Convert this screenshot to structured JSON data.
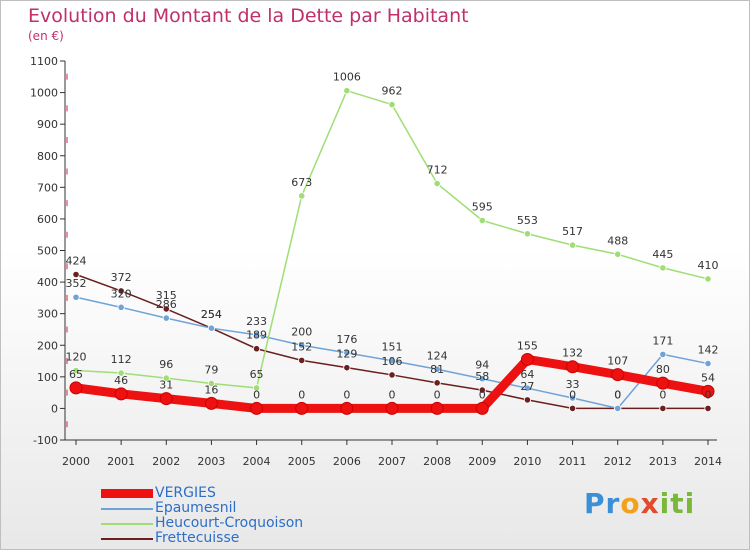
{
  "title": "Evolution du Montant de la Dette par Habitant",
  "subtitle": "(en €)",
  "logo": "Proxiti",
  "colors": {
    "title": "#c0306a",
    "legend_text": "#2d6ec9",
    "axis": "#333333",
    "tick_marks": "#cc2244"
  },
  "chart_data": {
    "type": "line",
    "title": "Evolution du Montant de la Dette par Habitant",
    "ylabel": "(en €)",
    "x": [
      "2000",
      "2001",
      "2002",
      "2003",
      "2004",
      "2005",
      "2006",
      "2007",
      "2008",
      "2009",
      "2010",
      "2011",
      "2012",
      "2013",
      "2014"
    ],
    "ylim": [
      -100,
      1100
    ],
    "yticks": [
      -100,
      0,
      100,
      200,
      300,
      400,
      500,
      600,
      700,
      800,
      900,
      1000,
      1100
    ],
    "grid": false,
    "legend_position": "bottom-left",
    "series": [
      {
        "name": "Frettecuisse",
        "color": "#6b1f1f",
        "values": [
          424,
          372,
          315,
          254,
          189,
          152,
          129,
          106,
          81,
          58,
          27,
          0,
          0,
          0,
          0
        ],
        "labels": [
          "424",
          "372",
          "315",
          "254",
          "189",
          "152",
          "129",
          "106",
          "81",
          "58",
          "27",
          "0",
          "0",
          "0",
          "0"
        ]
      },
      {
        "name": "Epaumesnil",
        "color": "#6fa3d6",
        "values": [
          352,
          320,
          286,
          254,
          233,
          200,
          176,
          151,
          124,
          94,
          64,
          33,
          0,
          171,
          142
        ],
        "labels": [
          "352",
          "320",
          "286",
          "254",
          "233",
          "200",
          "176",
          "151",
          "124",
          "94",
          "64",
          "33",
          "0",
          "171",
          "142"
        ]
      },
      {
        "name": "Heucourt-Croquoison",
        "color": "#9ede74",
        "values": [
          120,
          112,
          96,
          79,
          65,
          673,
          1006,
          962,
          712,
          595,
          553,
          517,
          488,
          445,
          410
        ],
        "labels": [
          "120",
          "112",
          "96",
          "79",
          "65",
          "673",
          "1006",
          "962",
          "712",
          "595",
          "553",
          "517",
          "488",
          "445",
          "410"
        ]
      },
      {
        "name": "VERGIES",
        "color": "#ee1111",
        "values": [
          65,
          46,
          31,
          16,
          0,
          0,
          0,
          0,
          0,
          0,
          155,
          132,
          107,
          80,
          54
        ],
        "labels": [
          "65",
          "46",
          "31",
          "16",
          "0",
          "0",
          "0",
          "0",
          "0",
          "0",
          "155",
          "132",
          "107",
          "80",
          "54"
        ]
      }
    ]
  },
  "legend": [
    {
      "label": "VERGIES",
      "color": "#ee1111"
    },
    {
      "label": "Epaumesnil",
      "color": "#6fa3d6"
    },
    {
      "label": "Heucourt-Croquoison",
      "color": "#9ede74"
    },
    {
      "label": "Frettecuisse",
      "color": "#6b1f1f"
    }
  ]
}
